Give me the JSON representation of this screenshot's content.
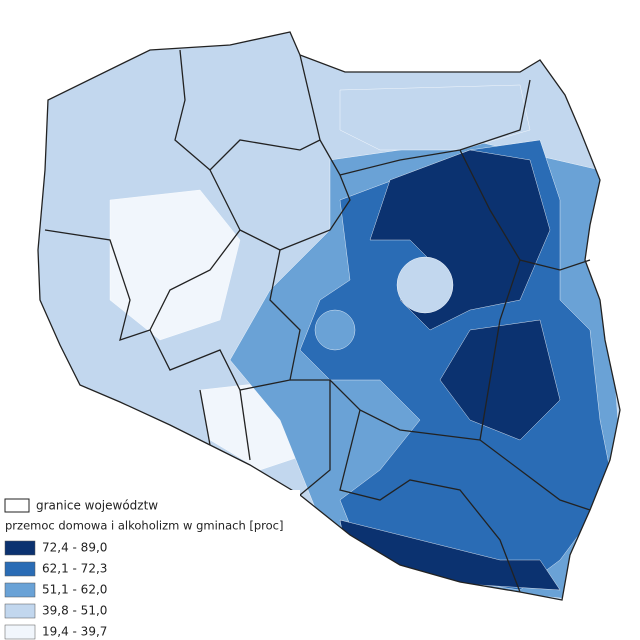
{
  "legend": {
    "boundary_label": "granice województw",
    "title": "przemoc domowa i alkoholizm w gminach [proc]",
    "classes": [
      {
        "label": "72,4 - 89,0",
        "color": "#0b3270"
      },
      {
        "label": "62,1 - 72,3",
        "color": "#2a6cb5"
      },
      {
        "label": "51,1 - 62,0",
        "color": "#6aa2d6"
      },
      {
        "label": "39,8 - 51,0",
        "color": "#c2d7ee"
      },
      {
        "label": "19,4 - 39,7",
        "color": "#f1f6fc"
      }
    ]
  }
}
